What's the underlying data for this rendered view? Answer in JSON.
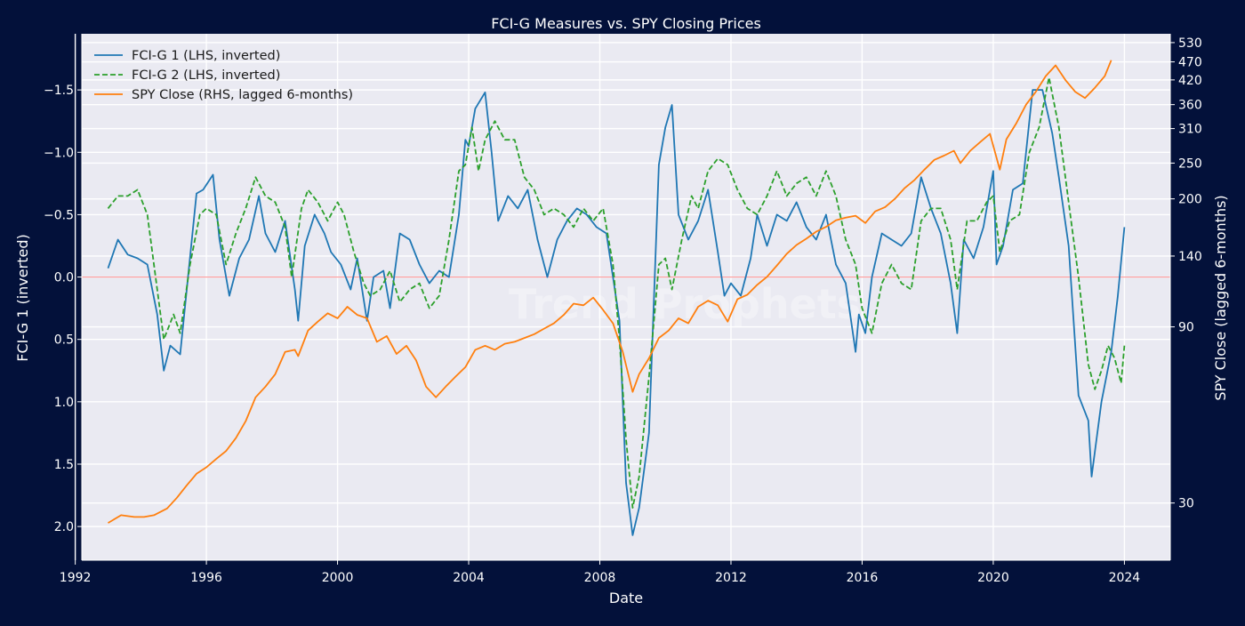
{
  "colors": {
    "page_bg": "#03113a",
    "plot_bg": "#eaeaf2",
    "grid": "#ffffff",
    "text": "#ffffff",
    "zero_line": "#ff9b9b",
    "fci1": "#1f77b4",
    "fci2": "#2ca02c",
    "spy": "#ff7f0e",
    "watermark": "#ffffff"
  },
  "watermark": {
    "text": "Trend Prophets"
  },
  "chart_data": {
    "type": "line",
    "title": "FCI-G Measures vs. SPY Closing Prices",
    "xlabel": "Date",
    "ylabel_left": "FCI-G 1 (inverted)",
    "ylabel_right": "SPY Close (lagged 6-months)",
    "grid": true,
    "legend_position": "top-left",
    "xlim": [
      1992.2,
      2025.4
    ],
    "ylim_left": [
      2.27,
      -1.95
    ],
    "left_inverted": true,
    "ylim_right": [
      21,
      560
    ],
    "right_scale": "log",
    "x_ticks": [
      1992,
      1996,
      2000,
      2004,
      2008,
      2012,
      2016,
      2020,
      2024
    ],
    "x_tick_labels": [
      "1992",
      "1996",
      "2000",
      "2004",
      "2008",
      "2012",
      "2016",
      "2020",
      "2024"
    ],
    "y_left_ticks": [
      -1.5,
      -1.0,
      -0.5,
      0.0,
      0.5,
      1.0,
      1.5,
      2.0
    ],
    "y_left_tick_labels": [
      "−1.5",
      "−1.0",
      "−0.5",
      "0.0",
      "0.5",
      "1.0",
      "1.5",
      "2.0"
    ],
    "y_right_ticks": [
      30,
      90,
      140,
      200,
      250,
      310,
      360,
      420,
      470,
      530
    ],
    "y_right_tick_labels": [
      "30",
      "90",
      "140",
      "200",
      "250",
      "310",
      "360",
      "420",
      "470",
      "530"
    ],
    "reference_line": {
      "axis": "left",
      "value": 0.0
    },
    "series": [
      {
        "name": "FCI-G 1 (LHS, inverted)",
        "axis": "left",
        "style": "solid",
        "x": [
          1993.0,
          1993.3,
          1993.6,
          1993.9,
          1994.2,
          1994.5,
          1994.7,
          1994.9,
          1995.2,
          1995.4,
          1995.7,
          1995.9,
          1996.2,
          1996.4,
          1996.7,
          1997.0,
          1997.3,
          1997.6,
          1997.8,
          1998.1,
          1998.4,
          1998.7,
          1998.8,
          1999.0,
          1999.3,
          1999.6,
          1999.8,
          2000.1,
          2000.4,
          2000.6,
          2000.9,
          2001.1,
          2001.4,
          2001.6,
          2001.9,
          2002.2,
          2002.5,
          2002.8,
          2003.1,
          2003.4,
          2003.7,
          2003.9,
          2004.0,
          2004.2,
          2004.5,
          2004.7,
          2004.9,
          2005.2,
          2005.5,
          2005.8,
          2006.1,
          2006.4,
          2006.7,
          2007.0,
          2007.3,
          2007.6,
          2007.9,
          2008.2,
          2008.4,
          2008.6,
          2008.8,
          2009.0,
          2009.2,
          2009.5,
          2009.8,
          2010.0,
          2010.2,
          2010.4,
          2010.7,
          2011.0,
          2011.3,
          2011.6,
          2011.8,
          2012.0,
          2012.3,
          2012.6,
          2012.8,
          2013.1,
          2013.4,
          2013.7,
          2014.0,
          2014.3,
          2014.6,
          2014.9,
          2015.2,
          2015.5,
          2015.8,
          2015.9,
          2016.1,
          2016.3,
          2016.6,
          2016.9,
          2017.2,
          2017.5,
          2017.8,
          2018.1,
          2018.4,
          2018.7,
          2018.9,
          2019.1,
          2019.4,
          2019.7,
          2020.0,
          2020.1,
          2020.3,
          2020.6,
          2020.9,
          2021.2,
          2021.5,
          2021.8,
          2022.0,
          2022.3,
          2022.6,
          2022.9,
          2023.0,
          2023.3,
          2023.6,
          2023.8,
          2024.0
        ],
        "values": [
          -0.07,
          -0.3,
          -0.18,
          -0.15,
          -0.1,
          0.3,
          0.75,
          0.55,
          0.62,
          0.1,
          -0.67,
          -0.7,
          -0.82,
          -0.3,
          0.15,
          -0.15,
          -0.3,
          -0.65,
          -0.35,
          -0.2,
          -0.45,
          0.1,
          0.35,
          -0.25,
          -0.5,
          -0.35,
          -0.2,
          -0.1,
          0.1,
          -0.15,
          0.35,
          0.0,
          -0.05,
          0.25,
          -0.35,
          -0.3,
          -0.1,
          0.05,
          -0.05,
          0.0,
          -0.5,
          -1.1,
          -1.05,
          -1.35,
          -1.48,
          -1.0,
          -0.45,
          -0.65,
          -0.55,
          -0.7,
          -0.3,
          0.0,
          -0.3,
          -0.45,
          -0.55,
          -0.5,
          -0.4,
          -0.35,
          0.0,
          0.35,
          1.65,
          2.07,
          1.85,
          1.25,
          -0.9,
          -1.2,
          -1.38,
          -0.5,
          -0.3,
          -0.45,
          -0.7,
          -0.2,
          0.15,
          0.05,
          0.15,
          -0.15,
          -0.5,
          -0.25,
          -0.5,
          -0.45,
          -0.6,
          -0.4,
          -0.3,
          -0.5,
          -0.1,
          0.05,
          0.6,
          0.3,
          0.45,
          0.0,
          -0.35,
          -0.3,
          -0.25,
          -0.35,
          -0.8,
          -0.55,
          -0.35,
          0.05,
          0.45,
          -0.3,
          -0.15,
          -0.4,
          -0.85,
          -0.1,
          -0.25,
          -0.7,
          -0.75,
          -1.5,
          -1.5,
          -1.15,
          -0.8,
          -0.25,
          0.95,
          1.15,
          1.6,
          1.0,
          0.6,
          0.15,
          -0.4
        ]
      },
      {
        "name": "FCI-G 2 (LHS, inverted)",
        "axis": "left",
        "style": "dashed",
        "x": [
          1993.0,
          1993.3,
          1993.6,
          1993.9,
          1994.2,
          1994.4,
          1994.7,
          1995.0,
          1995.2,
          1995.5,
          1995.8,
          1996.0,
          1996.3,
          1996.6,
          1996.9,
          1997.2,
          1997.5,
          1997.8,
          1998.1,
          1998.4,
          1998.6,
          1998.9,
          1999.1,
          1999.4,
          1999.7,
          2000.0,
          2000.2,
          2000.5,
          2000.8,
          2001.0,
          2001.3,
          2001.6,
          2001.9,
          2002.2,
          2002.5,
          2002.8,
          2003.1,
          2003.4,
          2003.7,
          2003.9,
          2004.1,
          2004.3,
          2004.5,
          2004.8,
          2005.1,
          2005.4,
          2005.7,
          2006.0,
          2006.3,
          2006.6,
          2006.9,
          2007.2,
          2007.5,
          2007.8,
          2008.1,
          2008.4,
          2008.6,
          2008.8,
          2009.0,
          2009.2,
          2009.5,
          2009.8,
          2010.0,
          2010.2,
          2010.5,
          2010.8,
          2011.0,
          2011.3,
          2011.6,
          2011.9,
          2012.2,
          2012.5,
          2012.8,
          2013.1,
          2013.4,
          2013.7,
          2014.0,
          2014.3,
          2014.6,
          2014.9,
          2015.2,
          2015.5,
          2015.8,
          2016.0,
          2016.3,
          2016.6,
          2016.9,
          2017.2,
          2017.5,
          2017.8,
          2018.1,
          2018.4,
          2018.7,
          2018.9,
          2019.2,
          2019.5,
          2019.8,
          2020.0,
          2020.2,
          2020.5,
          2020.8,
          2021.1,
          2021.4,
          2021.7,
          2022.0,
          2022.3,
          2022.6,
          2022.9,
          2023.1,
          2023.3,
          2023.5,
          2023.7,
          2023.9,
          2024.0
        ],
        "values": [
          -0.55,
          -0.65,
          -0.65,
          -0.7,
          -0.5,
          -0.1,
          0.5,
          0.3,
          0.45,
          -0.1,
          -0.5,
          -0.55,
          -0.5,
          -0.1,
          -0.35,
          -0.55,
          -0.8,
          -0.65,
          -0.6,
          -0.4,
          0.0,
          -0.55,
          -0.7,
          -0.6,
          -0.45,
          -0.6,
          -0.5,
          -0.2,
          0.05,
          0.15,
          0.1,
          -0.05,
          0.2,
          0.1,
          0.05,
          0.25,
          0.15,
          -0.3,
          -0.85,
          -0.9,
          -1.2,
          -0.85,
          -1.1,
          -1.25,
          -1.1,
          -1.1,
          -0.8,
          -0.7,
          -0.5,
          -0.55,
          -0.5,
          -0.4,
          -0.55,
          -0.45,
          -0.55,
          -0.1,
          0.5,
          1.3,
          1.85,
          1.6,
          0.8,
          -0.1,
          -0.15,
          0.1,
          -0.3,
          -0.65,
          -0.55,
          -0.85,
          -0.95,
          -0.9,
          -0.7,
          -0.55,
          -0.5,
          -0.65,
          -0.85,
          -0.65,
          -0.75,
          -0.8,
          -0.65,
          -0.85,
          -0.65,
          -0.3,
          -0.1,
          0.25,
          0.45,
          0.05,
          -0.1,
          0.05,
          0.1,
          -0.45,
          -0.55,
          -0.55,
          -0.3,
          0.1,
          -0.45,
          -0.45,
          -0.6,
          -0.65,
          -0.2,
          -0.45,
          -0.5,
          -1.0,
          -1.2,
          -1.6,
          -1.2,
          -0.6,
          0.0,
          0.7,
          0.9,
          0.75,
          0.55,
          0.65,
          0.85,
          0.55
        ]
      },
      {
        "name": "SPY Close (RHS, lagged 6-months)",
        "axis": "right",
        "style": "solid",
        "x": [
          1993.0,
          1993.4,
          1993.8,
          1994.1,
          1994.4,
          1994.8,
          1995.1,
          1995.4,
          1995.7,
          1996.0,
          1996.3,
          1996.6,
          1996.9,
          1997.2,
          1997.5,
          1997.8,
          1998.1,
          1998.4,
          1998.7,
          1998.8,
          1999.1,
          1999.4,
          1999.7,
          2000.0,
          2000.3,
          2000.6,
          2000.9,
          2001.2,
          2001.5,
          2001.8,
          2002.1,
          2002.4,
          2002.7,
          2003.0,
          2003.3,
          2003.6,
          2003.9,
          2004.2,
          2004.5,
          2004.8,
          2005.1,
          2005.4,
          2005.7,
          2006.0,
          2006.3,
          2006.6,
          2006.9,
          2007.2,
          2007.5,
          2007.8,
          2008.1,
          2008.4,
          2008.7,
          2009.0,
          2009.2,
          2009.5,
          2009.8,
          2010.1,
          2010.4,
          2010.7,
          2011.0,
          2011.3,
          2011.6,
          2011.9,
          2012.2,
          2012.5,
          2012.8,
          2013.1,
          2013.4,
          2013.7,
          2014.0,
          2014.3,
          2014.6,
          2014.9,
          2015.2,
          2015.5,
          2015.8,
          2016.1,
          2016.4,
          2016.7,
          2017.0,
          2017.3,
          2017.6,
          2017.9,
          2018.2,
          2018.5,
          2018.8,
          2019.0,
          2019.3,
          2019.6,
          2019.9,
          2020.2,
          2020.4,
          2020.7,
          2021.0,
          2021.3,
          2021.6,
          2021.9,
          2022.2,
          2022.5,
          2022.8,
          2023.1,
          2023.4,
          2023.6
        ],
        "values": [
          26.5,
          27.8,
          27.5,
          27.5,
          27.8,
          29.0,
          31.0,
          33.5,
          36.0,
          37.5,
          39.5,
          41.5,
          45.0,
          50.0,
          58.0,
          62.0,
          67.0,
          77.0,
          78.0,
          75.0,
          88.0,
          93.0,
          98.0,
          95.0,
          102.0,
          97.0,
          95.0,
          82.0,
          85.0,
          76.0,
          80.0,
          73.0,
          62.0,
          58.0,
          62.0,
          66.0,
          70.0,
          78.0,
          80.0,
          78.0,
          81.0,
          82.0,
          84.0,
          86.0,
          89.0,
          92.0,
          97.0,
          104.0,
          103.0,
          108.0,
          100.0,
          92.0,
          77.0,
          60.0,
          67.0,
          74.0,
          84.0,
          88.0,
          95.0,
          92.0,
          102.0,
          106.0,
          103.0,
          93.0,
          107.0,
          110.0,
          117.0,
          123.0,
          132.0,
          142.0,
          150.0,
          156.0,
          163.0,
          168.0,
          175.0,
          178.0,
          180.0,
          172.0,
          185.0,
          190.0,
          200.0,
          214.0,
          225.0,
          240.0,
          255.0,
          262.0,
          270.0,
          250.0,
          270.0,
          285.0,
          300.0,
          240.0,
          290.0,
          320.0,
          360.0,
          390.0,
          430.0,
          460.0,
          420.0,
          390.0,
          375.0,
          400.0,
          430.0,
          475.0
        ]
      }
    ]
  }
}
